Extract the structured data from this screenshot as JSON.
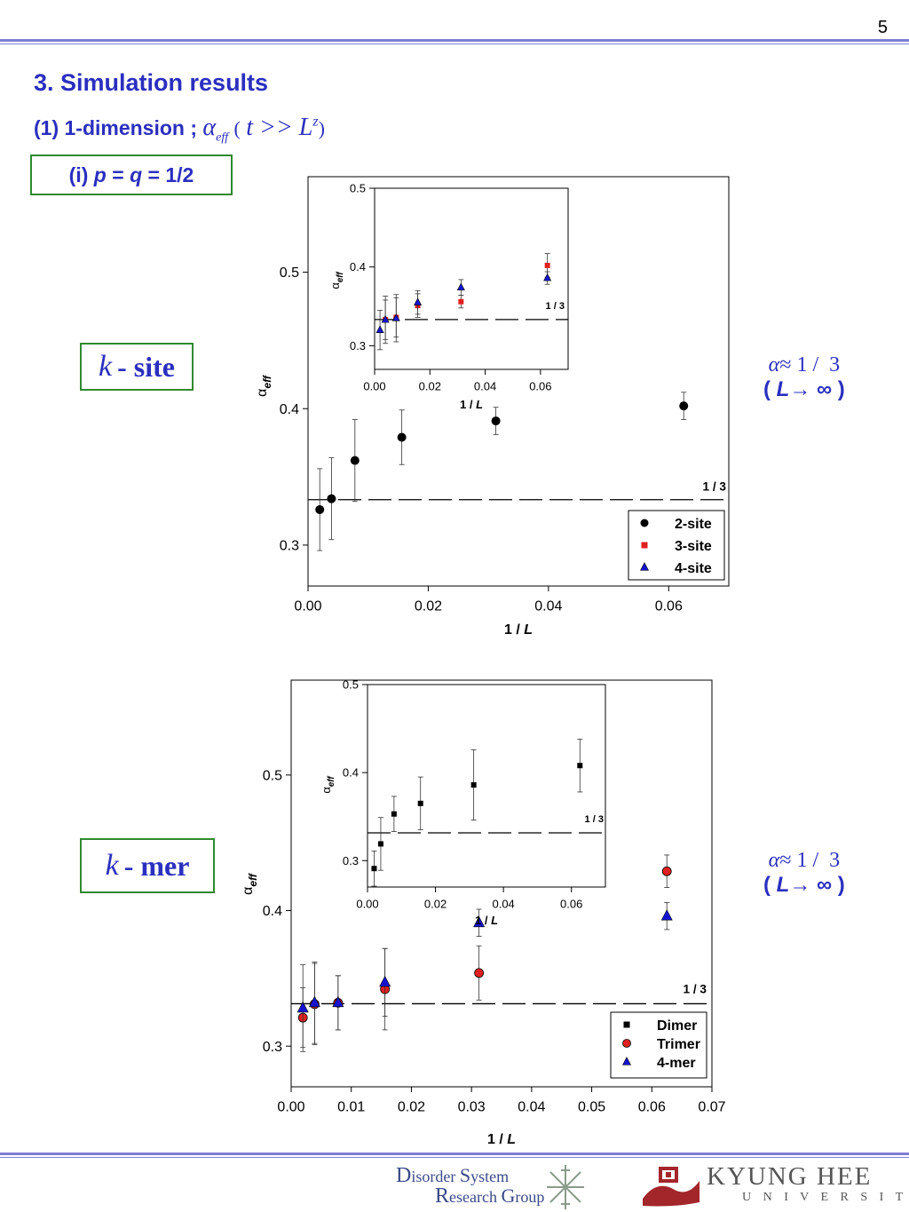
{
  "page_number": "5",
  "section_title": "3. Simulation results",
  "subtitle": {
    "prefix": "(1) 1-dimension  ;",
    "alpha_eff": "α",
    "alpha_sub": "eff",
    "paren_open": "(",
    "condition": "t >> L",
    "exponent": "z",
    "paren_close": ")"
  },
  "case_label": {
    "prefix": "(i) ",
    "p": "p",
    "eq1": " = ",
    "q": "q",
    "eq2": " = 1/2"
  },
  "box_k_site": {
    "k": "k",
    "label": "- site"
  },
  "box_k_mer": {
    "k": "k",
    "label": "- mer"
  },
  "note": {
    "alpha": "α",
    "approx": "≈ 1 /  3",
    "limit_open": "(",
    "L": "L",
    "arrow_inf": "→ ∞",
    "limit_close": ")"
  },
  "colors": {
    "accent_blue": "#2b2fbf",
    "box_green": "#2f8a2f",
    "rule": "#7b7fd6",
    "series_red": "#e02020",
    "series_blue": "#1515d0"
  },
  "chart_data": [
    {
      "id": "top-main",
      "type": "scatter",
      "xlabel_num": "1 / ",
      "xlabel_var": "L",
      "ylabel_base": "α",
      "ylabel_sub": "eff",
      "xlim": [
        0.0,
        0.07
      ],
      "ylim": [
        0.27,
        0.57
      ],
      "xticks": [
        "0.00",
        "0.02",
        "0.04",
        "0.06"
      ],
      "xtick_values": [
        0.0,
        0.02,
        0.04,
        0.06
      ],
      "yticks": [
        "0.3",
        "0.4",
        "0.5"
      ],
      "ytick_values": [
        0.3,
        0.4,
        0.5
      ],
      "reference_line": {
        "y": 0.3333,
        "label": "1 / 3"
      },
      "legend": {
        "position": "bottom-right",
        "entries": [
          {
            "name": "2-site",
            "marker": "circle",
            "color": "#000000"
          },
          {
            "name": "3-site",
            "marker": "square",
            "color": "#e02020"
          },
          {
            "name": "4-site",
            "marker": "triangle",
            "color": "#1515d0"
          }
        ]
      },
      "series": [
        {
          "name": "2-site",
          "marker": "circle",
          "color": "#000000",
          "size": 5,
          "x": [
            0.00195,
            0.0039,
            0.0078,
            0.0156,
            0.03125,
            0.0625
          ],
          "y": [
            0.326,
            0.334,
            0.362,
            0.379,
            0.391,
            0.402
          ],
          "err": [
            0.03,
            0.03,
            0.03,
            0.02,
            0.01,
            0.01
          ]
        }
      ]
    },
    {
      "id": "top-inset",
      "type": "scatter",
      "xlabel_num": "1 / ",
      "xlabel_var": "L",
      "ylabel_base": "α",
      "ylabel_sub": "eff",
      "xlim": [
        0.0,
        0.07
      ],
      "ylim": [
        0.27,
        0.5
      ],
      "xticks": [
        "0.00",
        "0.02",
        "0.04",
        "0.06"
      ],
      "xtick_values": [
        0.0,
        0.02,
        0.04,
        0.06
      ],
      "yticks": [
        "0.3",
        "0.4",
        "0.5"
      ],
      "ytick_values": [
        0.3,
        0.4,
        0.5
      ],
      "reference_line": {
        "y": 0.3333,
        "label": "1 / 3"
      },
      "series": [
        {
          "name": "3-site",
          "marker": "square",
          "color": "#e02020",
          "size": 3,
          "x": [
            0.0039,
            0.0078,
            0.0156,
            0.03125,
            0.0625
          ],
          "y": [
            0.333,
            0.336,
            0.351,
            0.356,
            0.402
          ],
          "err": [
            0.025,
            0.025,
            0.015,
            0.008,
            0.015
          ]
        },
        {
          "name": "4-site",
          "marker": "triangle",
          "color": "#1515d0",
          "size": 4,
          "x": [
            0.00195,
            0.0039,
            0.0078,
            0.0156,
            0.03125,
            0.0625
          ],
          "y": [
            0.32,
            0.333,
            0.335,
            0.355,
            0.374,
            0.386
          ],
          "err": [
            0.025,
            0.03,
            0.03,
            0.015,
            0.01,
            0.008
          ]
        }
      ]
    },
    {
      "id": "bottom-main",
      "type": "scatter",
      "xlabel_num": "1 / ",
      "xlabel_var": "L",
      "ylabel_base": "α",
      "ylabel_sub": "eff",
      "xlim": [
        0.0,
        0.07
      ],
      "ylim": [
        0.27,
        0.57
      ],
      "xticks": [
        "0.00",
        "0.01",
        "0.02",
        "0.03",
        "0.04",
        "0.05",
        "0.06",
        "0.07"
      ],
      "xtick_values": [
        0.0,
        0.01,
        0.02,
        0.03,
        0.04,
        0.05,
        0.06,
        0.07
      ],
      "yticks": [
        "0.3",
        "0.4",
        "0.5"
      ],
      "ytick_values": [
        0.3,
        0.4,
        0.5
      ],
      "reference_line": {
        "y": 0.3313,
        "label": "1 / 3"
      },
      "legend": {
        "position": "bottom-right",
        "entries": [
          {
            "name": "Dimer",
            "marker": "square",
            "color": "#000000"
          },
          {
            "name": "Trimer",
            "marker": "circle",
            "color": "#e02020"
          },
          {
            "name": "4-mer",
            "marker": "triangle",
            "color": "#1515d0"
          }
        ]
      },
      "series": [
        {
          "name": "Trimer",
          "marker": "circle",
          "color": "#e02020",
          "size": 5,
          "x": [
            0.00195,
            0.0039,
            0.0078,
            0.0156,
            0.03125,
            0.0625
          ],
          "y": [
            0.321,
            0.331,
            0.332,
            0.342,
            0.354,
            0.429
          ],
          "err": [
            0.022,
            0.03,
            0.02,
            0.03,
            0.02,
            0.012
          ]
        },
        {
          "name": "4-mer",
          "marker": "triangle",
          "color": "#1515d0",
          "size": 6,
          "x": [
            0.00195,
            0.0039,
            0.0078,
            0.0156,
            0.03125,
            0.0625
          ],
          "y": [
            0.328,
            0.332,
            0.332,
            0.347,
            0.391,
            0.396
          ],
          "err": [
            0.032,
            0.03,
            0.02,
            0.025,
            0.01,
            0.01
          ]
        }
      ]
    },
    {
      "id": "bottom-inset",
      "type": "scatter",
      "xlabel_num": "1 / ",
      "xlabel_var": "L",
      "ylabel_base": "α",
      "ylabel_sub": "eff",
      "xlim": [
        0.0,
        0.07
      ],
      "ylim": [
        0.27,
        0.5
      ],
      "xticks": [
        "0.00",
        "0.02",
        "0.04",
        "0.06"
      ],
      "xtick_values": [
        0.0,
        0.02,
        0.04,
        0.06
      ],
      "yticks": [
        "0.3",
        "0.4",
        "0.5"
      ],
      "ytick_values": [
        0.3,
        0.4,
        0.5
      ],
      "reference_line": {
        "y": 0.3315,
        "label": "1 / 3"
      },
      "series": [
        {
          "name": "Dimer",
          "marker": "square",
          "color": "#000000",
          "size": 3,
          "x": [
            0.00195,
            0.0039,
            0.0078,
            0.0156,
            0.03125,
            0.0625
          ],
          "y": [
            0.291,
            0.319,
            0.353,
            0.365,
            0.386,
            0.408
          ],
          "err": [
            0.02,
            0.03,
            0.02,
            0.03,
            0.04,
            0.03
          ]
        }
      ]
    }
  ],
  "footer": {
    "left_logo": {
      "D": "D",
      "isorder": "isorder ",
      "S": "S",
      "ystem": "ystem",
      "R": "R",
      "esearch": "esearch ",
      "G": "G",
      "roup": "roup"
    },
    "right_logo": {
      "name": "KYUNG HEE",
      "sub": "U N I V E R S I T Y"
    }
  }
}
